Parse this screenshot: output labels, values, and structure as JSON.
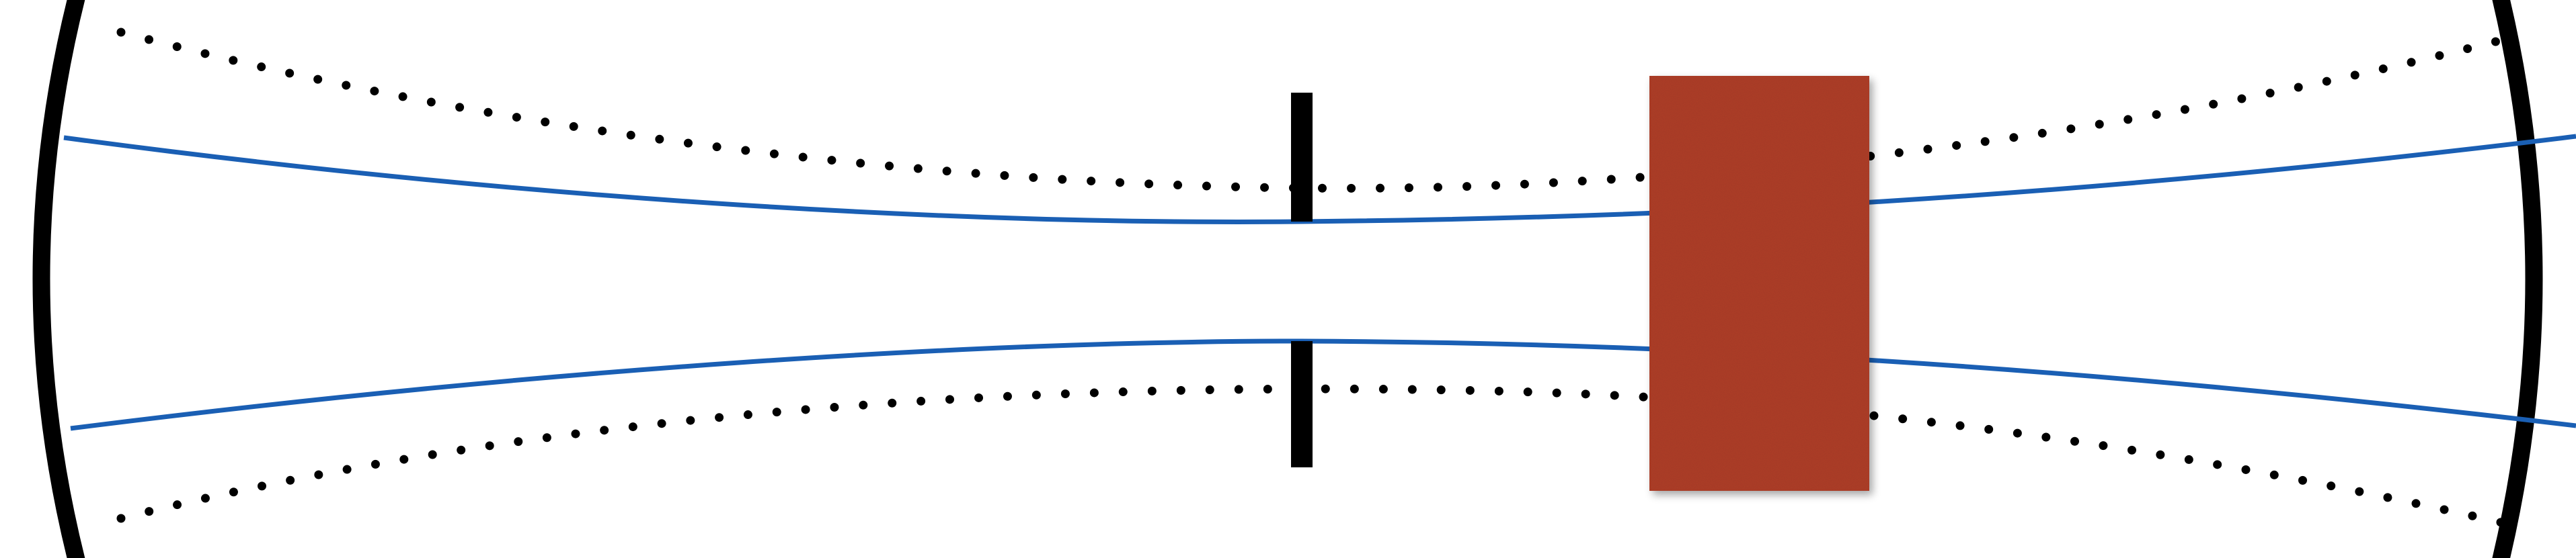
{
  "diagram": {
    "colors": {
      "background": "#ffffff",
      "mirror": "#000000",
      "beam_outline": "#1a5fb4",
      "dotted_envelope": "#000000",
      "aperture": "#000000",
      "gain_medium": "#b03f2c"
    },
    "elements": [
      "left-curved-mirror",
      "right-curved-mirror",
      "aperture-slit",
      "gain-medium-block",
      "gaussian-beam-envelope",
      "dotted-mode-envelope"
    ]
  }
}
